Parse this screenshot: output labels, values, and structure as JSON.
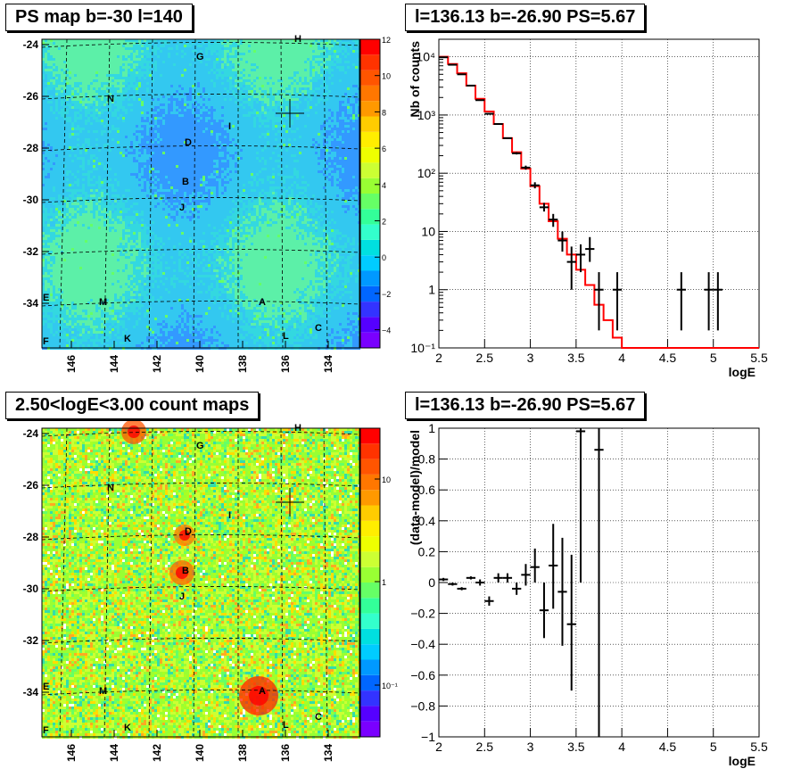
{
  "panels": {
    "top_left_title": "PS map b=-30 l=140",
    "top_right_title": "l=136.13 b=-26.90 PS=5.67",
    "bottom_left_title": "2.50<logE<3.00 count maps",
    "bottom_right_title": "l=136.13 b=-26.90 PS=5.67"
  },
  "colors": {
    "model_line": "#ff0000",
    "data_points": "#000000",
    "map_base_top": "#33c8f0",
    "map_base_bottom": "#9ef06a"
  },
  "chart_data": [
    {
      "type": "heatmap",
      "title": "PS map b=-30 l=140",
      "x_ticks": [
        "146",
        "144",
        "142",
        "140",
        "138",
        "136",
        "134"
      ],
      "y_ticks": [
        "-24",
        "-26",
        "-28",
        "-30",
        "-32",
        "-34"
      ],
      "colorbar": {
        "scale": "linear",
        "range": [
          -5,
          12
        ],
        "ticks": [
          "12",
          "10",
          "8",
          "6",
          "4",
          "2",
          "0",
          "−2",
          "−4"
        ]
      },
      "source_labels": [
        {
          "label": "H"
        },
        {
          "label": "G"
        },
        {
          "label": "N"
        },
        {
          "label": "I"
        },
        {
          "label": "D"
        },
        {
          "label": "B"
        },
        {
          "label": "J"
        },
        {
          "label": "E"
        },
        {
          "label": "M"
        },
        {
          "label": "A"
        },
        {
          "label": "F"
        },
        {
          "label": "K"
        },
        {
          "label": "L"
        },
        {
          "label": "C"
        }
      ]
    },
    {
      "type": "line",
      "title": "l=136.13 b=-26.90 PS=5.67",
      "xlabel": "logE",
      "ylabel": "Nb of counts",
      "xlim": [
        2,
        5.5
      ],
      "ylim": [
        0.1,
        20000
      ],
      "yscale": "log",
      "x_ticks": [
        "2",
        "2.5",
        "3",
        "3.5",
        "4",
        "4.5",
        "5",
        "5.5"
      ],
      "y_ticks": [
        "10⁻¹",
        "1",
        "10",
        "10²",
        "10³",
        "10⁴"
      ],
      "grid": true,
      "series": [
        {
          "kind": "histogram",
          "edges": [
            2.0,
            2.1,
            2.2,
            2.3,
            2.4,
            2.5,
            2.6,
            2.7,
            2.8,
            2.9,
            3.0,
            3.1,
            3.2,
            3.3,
            3.4,
            3.5,
            3.6,
            3.7,
            3.8,
            3.9,
            4.0,
            5.5
          ],
          "values": [
            10000,
            7500,
            5200,
            3200,
            1900,
            1150,
            700,
            400,
            230,
            120,
            60,
            30,
            15,
            7.5,
            4,
            2.2,
            1.2,
            0.55,
            0.3,
            0.15,
            0.1
          ]
        },
        {
          "kind": "points",
          "x": [
            2.05,
            2.15,
            2.25,
            2.35,
            2.45,
            2.55,
            2.65,
            2.75,
            2.85,
            2.95,
            3.05,
            3.15,
            3.25,
            3.35,
            3.45,
            3.55,
            3.65,
            3.75,
            3.95,
            4.65,
            4.95,
            5.05
          ],
          "y": [
            9800,
            7300,
            5000,
            3200,
            1800,
            1050,
            700,
            400,
            220,
            125,
            62,
            26,
            16,
            7,
            3,
            4,
            5,
            1,
            1,
            1,
            1,
            1
          ],
          "ylo": [
            9600,
            7150,
            4900,
            3150,
            1760,
            1020,
            680,
            390,
            210,
            115,
            55,
            22,
            12,
            4.5,
            1,
            2,
            3,
            0.2,
            0.2,
            0.2,
            0.2,
            0.2
          ],
          "yhi": [
            10000,
            7450,
            5100,
            3250,
            1840,
            1080,
            720,
            410,
            230,
            135,
            70,
            31,
            20,
            10,
            5.5,
            6,
            8,
            2,
            2,
            2,
            2,
            2
          ]
        }
      ]
    },
    {
      "type": "heatmap",
      "title": "2.50<logE<3.00 count maps",
      "x_ticks": [
        "146",
        "144",
        "142",
        "140",
        "138",
        "136",
        "134"
      ],
      "y_ticks": [
        "-24",
        "-26",
        "-28",
        "-30",
        "-32",
        "-34"
      ],
      "colorbar": {
        "scale": "log",
        "ticks": [
          "10",
          "1",
          "10⁻¹"
        ]
      },
      "source_labels": [
        {
          "label": "H"
        },
        {
          "label": "G"
        },
        {
          "label": "N"
        },
        {
          "label": "I"
        },
        {
          "label": "D"
        },
        {
          "label": "B"
        },
        {
          "label": "J"
        },
        {
          "label": "E"
        },
        {
          "label": "M"
        },
        {
          "label": "A"
        },
        {
          "label": "F"
        },
        {
          "label": "K"
        },
        {
          "label": "L"
        },
        {
          "label": "C"
        }
      ]
    },
    {
      "type": "scatter",
      "title": "l=136.13 b=-26.90 PS=5.67",
      "xlabel": "logE",
      "ylabel": "(data-model)/model",
      "xlim": [
        2,
        5.5
      ],
      "ylim": [
        -1,
        1
      ],
      "x_ticks": [
        "2",
        "2.5",
        "3",
        "3.5",
        "4",
        "4.5",
        "5",
        "5.5"
      ],
      "y_ticks": [
        "1",
        "0.8",
        "0.6",
        "0.4",
        "0.2",
        "0",
        "−0.2",
        "−0.4",
        "−0.6",
        "−0.8",
        "−1"
      ],
      "grid": true,
      "series": [
        {
          "kind": "points",
          "x": [
            2.05,
            2.15,
            2.25,
            2.35,
            2.45,
            2.55,
            2.65,
            2.75,
            2.85,
            2.95,
            3.05,
            3.15,
            3.25,
            3.35,
            3.45,
            3.55,
            3.75
          ],
          "y": [
            0.02,
            -0.01,
            -0.04,
            0.03,
            0.0,
            -0.12,
            0.03,
            0.03,
            -0.04,
            0.05,
            0.1,
            -0.18,
            0.11,
            -0.06,
            -0.27,
            0.98,
            0.86
          ],
          "ylo": [
            0.01,
            -0.02,
            -0.05,
            0.02,
            -0.02,
            -0.15,
            0.0,
            0.0,
            -0.08,
            -0.02,
            0.0,
            -0.36,
            -0.17,
            -0.41,
            -0.7,
            0.0,
            -1.0
          ],
          "yhi": [
            0.03,
            0.0,
            -0.03,
            0.04,
            0.02,
            -0.09,
            0.06,
            0.06,
            0.0,
            0.12,
            0.22,
            0.0,
            0.38,
            0.29,
            0.18,
            1.0,
            1.0
          ]
        }
      ]
    }
  ]
}
